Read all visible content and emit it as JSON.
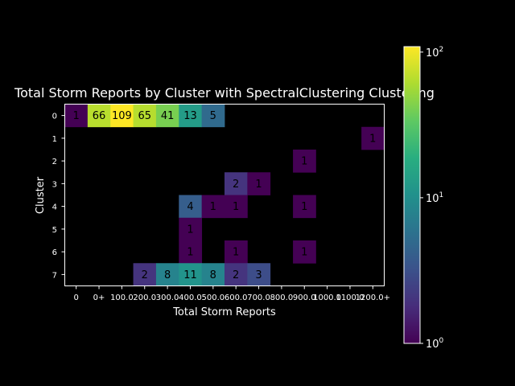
{
  "chart_data": {
    "type": "heatmap",
    "title": "Total Storm Reports by Cluster with SpectralClustering Clustering",
    "xlabel": "Total Storm Reports",
    "ylabel": "Cluster",
    "x_categories": [
      "0",
      "0+",
      "100.0",
      "200.0",
      "300.0",
      "400.0",
      "500.0",
      "600.0",
      "700.0",
      "800.0",
      "900.0",
      "1000.0",
      "1100.0",
      "1200.0+"
    ],
    "y_categories": [
      "0",
      "1",
      "2",
      "3",
      "4",
      "5",
      "6",
      "7"
    ],
    "values": [
      [
        1,
        66,
        109,
        65,
        41,
        13,
        5,
        null,
        null,
        null,
        null,
        null,
        null,
        null
      ],
      [
        null,
        null,
        null,
        null,
        null,
        null,
        null,
        null,
        null,
        null,
        null,
        null,
        null,
        1
      ],
      [
        null,
        null,
        null,
        null,
        null,
        null,
        null,
        null,
        null,
        null,
        1,
        null,
        null,
        null
      ],
      [
        null,
        null,
        null,
        null,
        null,
        null,
        null,
        2,
        1,
        null,
        null,
        null,
        null,
        null
      ],
      [
        null,
        null,
        null,
        null,
        null,
        4,
        1,
        1,
        null,
        null,
        1,
        null,
        null,
        null
      ],
      [
        null,
        null,
        null,
        null,
        null,
        1,
        null,
        null,
        null,
        null,
        null,
        null,
        null,
        null
      ],
      [
        null,
        null,
        null,
        null,
        null,
        1,
        null,
        1,
        null,
        null,
        1,
        null,
        null,
        null
      ],
      [
        null,
        null,
        null,
        2,
        8,
        11,
        8,
        2,
        3,
        null,
        null,
        null,
        null,
        null
      ]
    ],
    "colorbar": {
      "scale": "log",
      "range": [
        1,
        109
      ],
      "colormap": "viridis",
      "tick_labels": [
        {
          "base": "10",
          "exp": "0",
          "value": 1
        },
        {
          "base": "10",
          "exp": "1",
          "value": 10
        },
        {
          "base": "10",
          "exp": "2",
          "value": 100
        }
      ]
    },
    "colors": {
      "background": "#000000",
      "foreground": "#ffffff",
      "cell_text": "#000000"
    }
  }
}
